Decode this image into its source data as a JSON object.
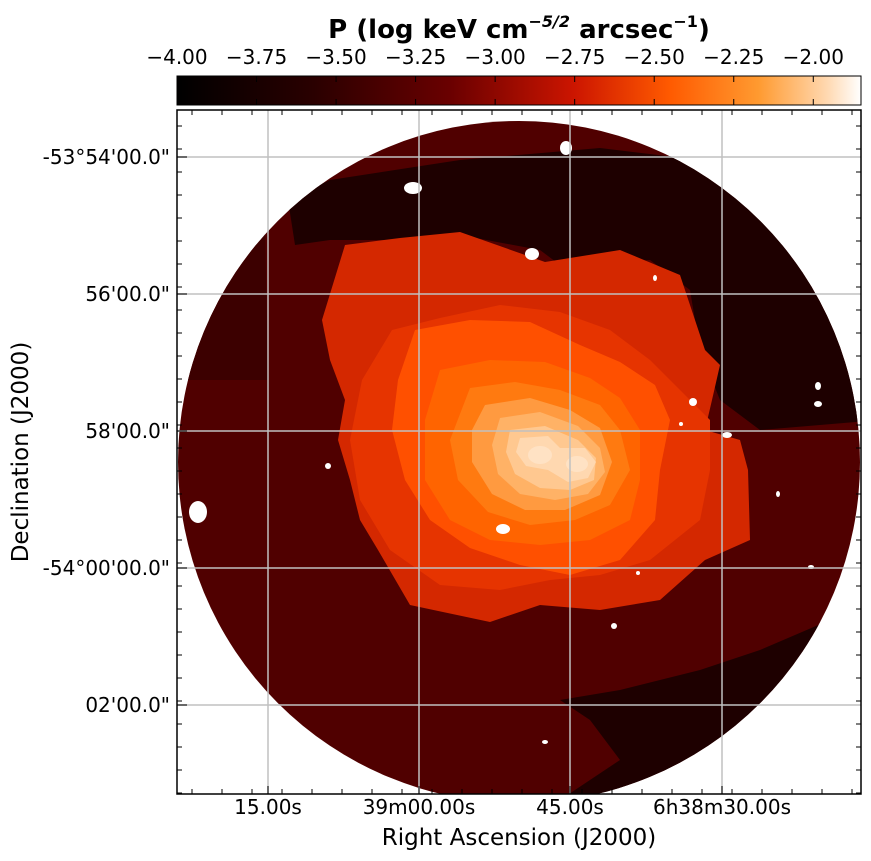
{
  "chart_data": {
    "type": "heatmap",
    "title": "P (log keV cm",
    "title_exp1": "−5/2",
    "title_mid": " arcsec",
    "title_exp2": "−1",
    "title_end": ")",
    "colormap": "gist_heat",
    "colorbar": {
      "ticks": [
        "−4.00",
        "−3.75",
        "−3.50",
        "−3.25",
        "−3.00",
        "−2.75",
        "−2.50",
        "−2.25",
        "−2.00"
      ],
      "values": [
        -4.0,
        -3.75,
        -3.5,
        -3.25,
        -3.0,
        -2.75,
        -2.5,
        -2.25,
        -2.0
      ],
      "range": [
        -4.0,
        -1.85
      ],
      "position": "top"
    },
    "xlabel": "Right Ascension (J2000)",
    "ylabel": "Declination (J2000)",
    "x_ticks": [
      "15.00s",
      "39m00.00s",
      "45.00s",
      "6h38m30.00s"
    ],
    "y_ticks": [
      "-53°54'00.0\"",
      "56'00.0\"",
      "58'00.0\"",
      "-54°00'00.0\"",
      "02'00.0\""
    ],
    "grid": true,
    "levels": [
      -3.95,
      -3.8,
      -3.55,
      -3.3,
      -3.05,
      -2.85,
      -2.65,
      -2.45,
      -2.3,
      -2.15,
      -2.0,
      -1.9
    ],
    "colors": {
      "lowest": "#1e0000",
      "low": "#500000",
      "mid": "#d42800",
      "high": "#ff9a40",
      "peak": "#ffd8b0",
      "masked": "#ffffff",
      "grid": "#c0c0c0"
    }
  }
}
